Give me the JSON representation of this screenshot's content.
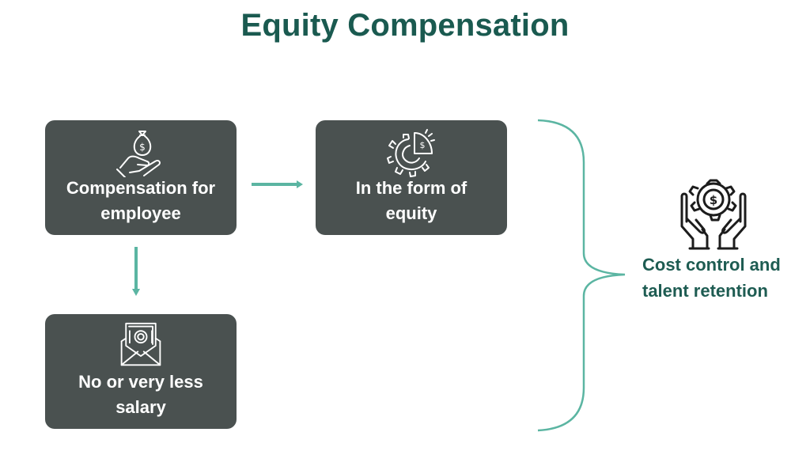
{
  "title": "Equity Compensation",
  "colors": {
    "title": "#1a5a50",
    "box_fill": "#4a5150",
    "box_text": "#ffffff",
    "icon_stroke": "#ffffff",
    "arrow": "#5bb5a2",
    "brace": "#5bb5a2",
    "result_text": "#1e5c52",
    "result_icon": "#1c1c1c"
  },
  "boxes": {
    "compensation": {
      "icon": "money-bag-hand-icon",
      "line1": "Compensation for",
      "line2": "employee"
    },
    "equity": {
      "icon": "gear-pie-chart-icon",
      "line1": "In the form of",
      "line2": "equity"
    },
    "salary": {
      "icon": "money-envelope-icon",
      "line1": "No or very less",
      "line2": "salary"
    }
  },
  "result": {
    "icon": "hands-gear-dollar-icon",
    "line1": "Cost control and",
    "line2": "talent retention"
  },
  "connectors": [
    {
      "from": "compensation",
      "to": "equity",
      "kind": "arrow-right"
    },
    {
      "from": "compensation",
      "to": "salary",
      "kind": "arrow-down"
    },
    {
      "from": [
        "equity",
        "salary"
      ],
      "to": "result",
      "kind": "brace"
    }
  ]
}
